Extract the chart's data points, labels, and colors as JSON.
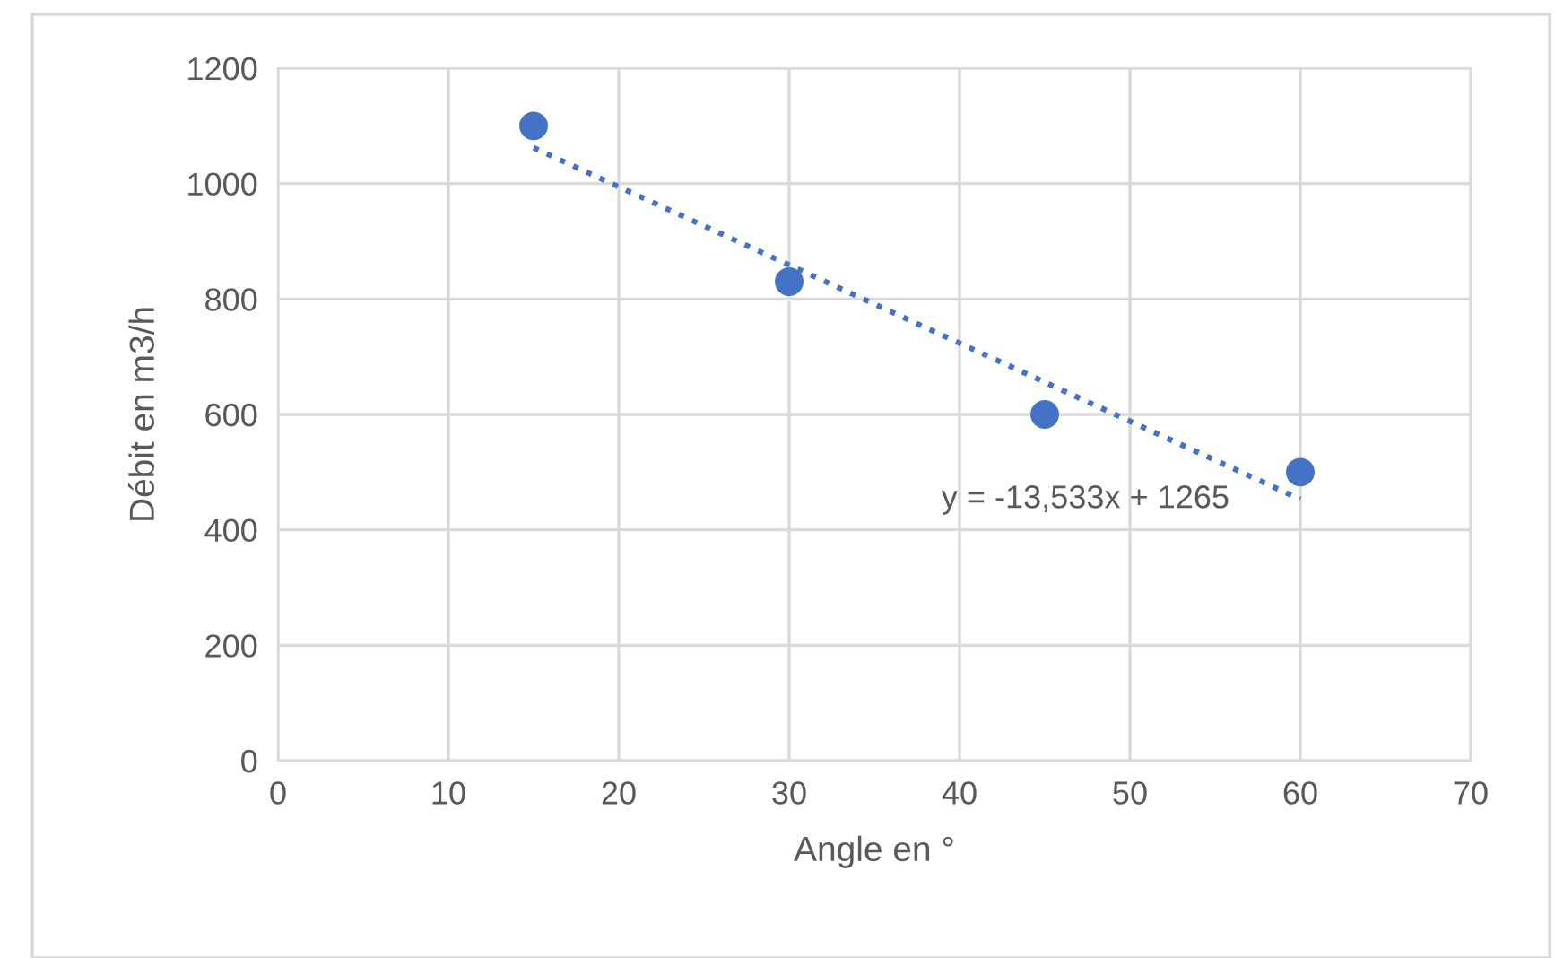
{
  "chart_data": {
    "type": "scatter",
    "xlabel": "Angle en °",
    "ylabel": "Débit en m3/h",
    "xlim": [
      0,
      70
    ],
    "xticks": [
      0,
      10,
      20,
      30,
      40,
      50,
      60,
      70
    ],
    "ylim": [
      0,
      1200
    ],
    "yticks": [
      0,
      200,
      400,
      600,
      800,
      1000,
      1200
    ],
    "grid": true,
    "marker": "circle",
    "x": [
      15,
      30,
      45,
      60
    ],
    "series": [
      {
        "color": "#4472c4",
        "values": [
          1100,
          830,
          600,
          500
        ]
      },
      {
        "type": "line",
        "color": "#4472c4",
        "line_style": "dotted",
        "marker": "none",
        "x": [
          15,
          60
        ],
        "values": [
          1062,
          453
        ]
      }
    ],
    "annotations": [
      "y = -13,533x + 1265"
    ]
  }
}
